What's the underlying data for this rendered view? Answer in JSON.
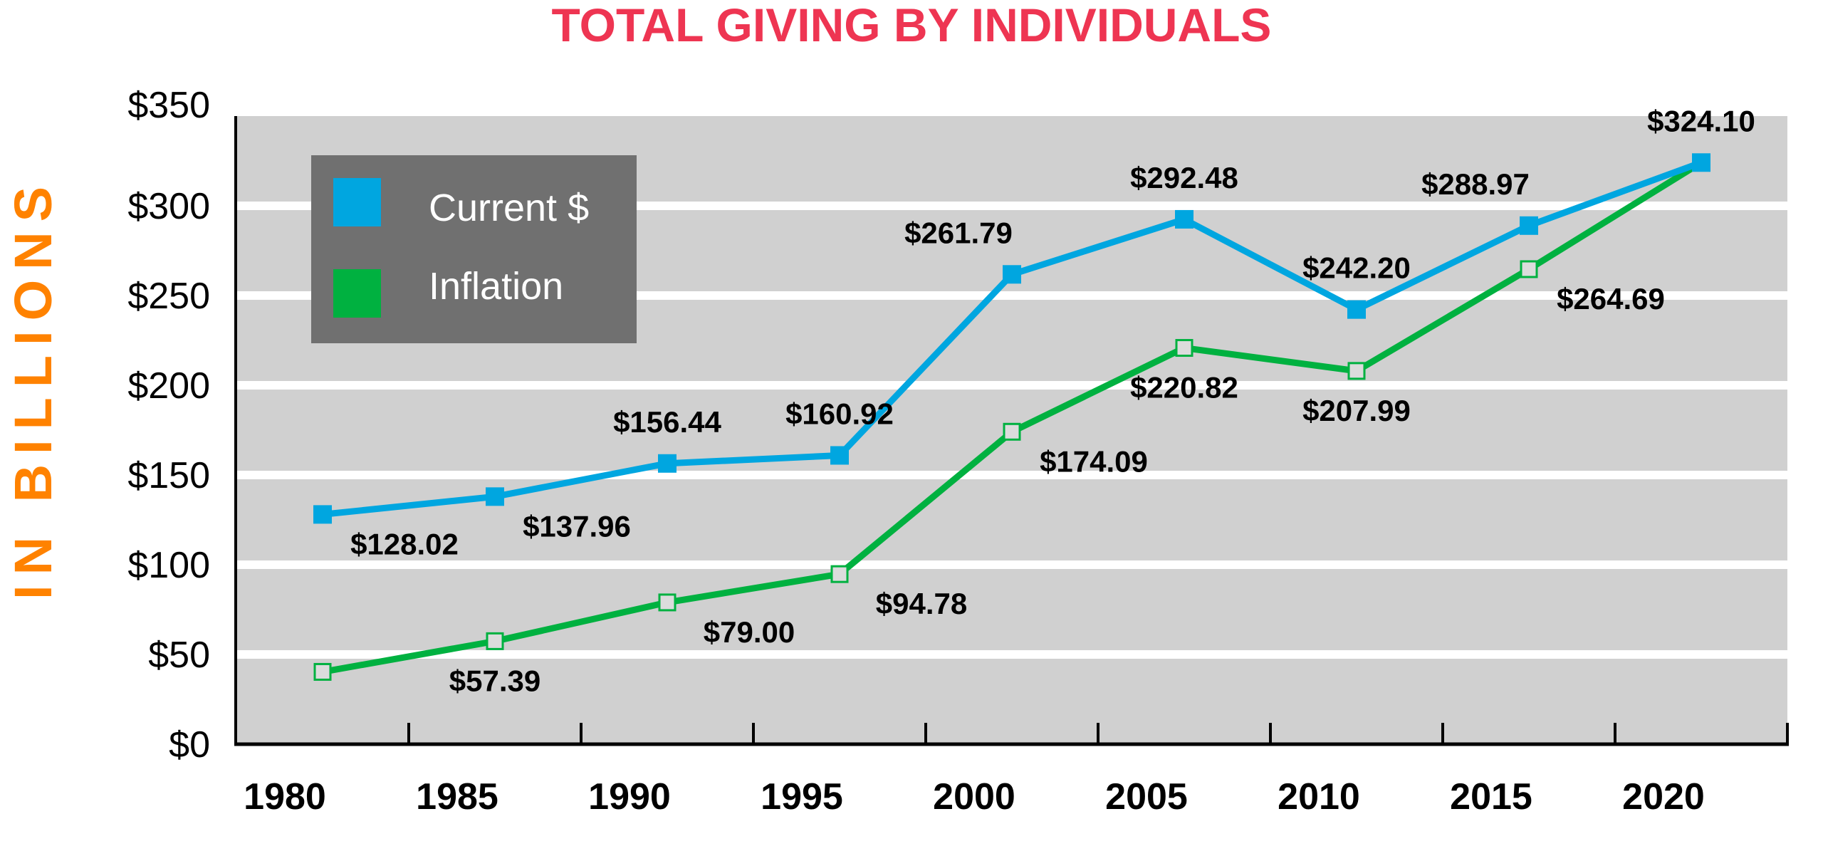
{
  "chart_data": {
    "type": "line",
    "title": "TOTAL GIVING BY INDIVIDUALS",
    "xlabel": "",
    "ylabel": "IN BILLIONS",
    "ylim": [
      0,
      350
    ],
    "yticks": [
      0,
      50,
      100,
      150,
      200,
      250,
      300,
      350
    ],
    "ytick_labels": [
      "$0",
      "$50",
      "$100",
      "$150",
      "$200",
      "$250",
      "$300",
      "$350"
    ],
    "categories": [
      "1980",
      "1985",
      "1990",
      "1995",
      "2000",
      "2005",
      "2010",
      "2015",
      "2020"
    ],
    "grid": true,
    "legend_position": "top-left",
    "series": [
      {
        "name": "Current $",
        "color": "#00A6E0",
        "marker": "filled-square",
        "values": [
          128.02,
          137.96,
          156.44,
          160.92,
          261.79,
          292.48,
          242.2,
          288.97,
          324.1
        ],
        "labels": [
          "$128.02",
          "$137.96",
          "$156.44",
          "$160.92",
          "$261.79",
          "$292.48",
          "$242.20",
          "$288.97",
          "$324.10"
        ],
        "label_positions": [
          "below-right",
          "below-right",
          "above",
          "above",
          "above-left",
          "above",
          "above",
          "above-left",
          "above"
        ]
      },
      {
        "name": "Inflation",
        "color": "#00B140",
        "marker": "hollow-square",
        "values": [
          40.3,
          57.39,
          79.0,
          94.78,
          174.09,
          220.82,
          207.99,
          264.69,
          324.1
        ],
        "labels": [
          null,
          "$57.39",
          "$79.00",
          "$94.78",
          "$174.09",
          "$220.82",
          "$207.99",
          "$264.69",
          null
        ],
        "label_positions": [
          null,
          "below",
          "below-right",
          "below-right",
          "below-right",
          "below",
          "below",
          "below-right",
          null
        ]
      }
    ]
  },
  "colors": {
    "title": "#EE3552",
    "ylabel": "#FF8200",
    "plot_background": "#D0D0D0",
    "gridline": "#FFFFFF",
    "legend_background": "#707070",
    "marker_fill_hollow": "#DCDCDC"
  }
}
